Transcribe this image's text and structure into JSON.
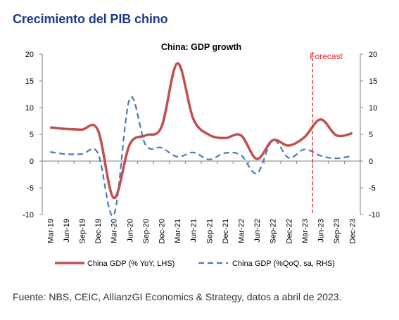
{
  "page": {
    "title": "Crecimiento del PIB chino",
    "caption": "Fuente: NBS, CEIC, AllianzGI Economics & Strategy, datos a abril de 2023."
  },
  "colors": {
    "title": "#1f3a8a",
    "series_yoy": "#c0504d",
    "series_qoq": "#4a7ab8",
    "forecast_line": "#e3262c",
    "axis": "#808080"
  },
  "chart_data": {
    "type": "line",
    "title": "China: GDP growth",
    "annotation": "Forecast",
    "forecast_start": "Mar-23",
    "x": [
      "Mar-19",
      "Jun-19",
      "Sep-19",
      "Dec-19",
      "Mar-20",
      "Jun-20",
      "Sep-20",
      "Dec-20",
      "Mar-21",
      "Jun-21",
      "Sep-21",
      "Dec-21",
      "Mar-22",
      "Jun-22",
      "Sep-22",
      "Dec-22",
      "Mar-23",
      "Jun-23",
      "Sep-23",
      "Dec-23"
    ],
    "yticks_left": [
      "20",
      "15",
      "10",
      "5",
      "0",
      "-5",
      "-10"
    ],
    "yticks_right": [
      "20",
      "15",
      "10",
      "5",
      "0",
      "-5",
      "-10"
    ],
    "ylim_left": [
      -10,
      20
    ],
    "ylim_right": [
      -10,
      20
    ],
    "grid": false,
    "legend_position": "bottom",
    "series": [
      {
        "name": "China GDP (% YoY, LHS)",
        "axis": "left",
        "style": "solid",
        "values": [
          6.3,
          6.0,
          5.9,
          5.8,
          -6.9,
          3.1,
          4.8,
          6.4,
          18.3,
          7.9,
          4.9,
          4.3,
          4.8,
          0.4,
          3.9,
          2.9,
          4.5,
          7.8,
          4.8,
          5.2
        ]
      },
      {
        "name": "China GDP (%QoQ, sa, RHS)",
        "axis": "right",
        "style": "dashed",
        "values": [
          1.7,
          1.3,
          1.3,
          1.5,
          -10.1,
          11.7,
          3.0,
          2.5,
          0.8,
          1.6,
          0.3,
          1.5,
          1.1,
          -2.3,
          3.9,
          0.6,
          2.2,
          1.0,
          0.5,
          1.0
        ]
      }
    ]
  }
}
